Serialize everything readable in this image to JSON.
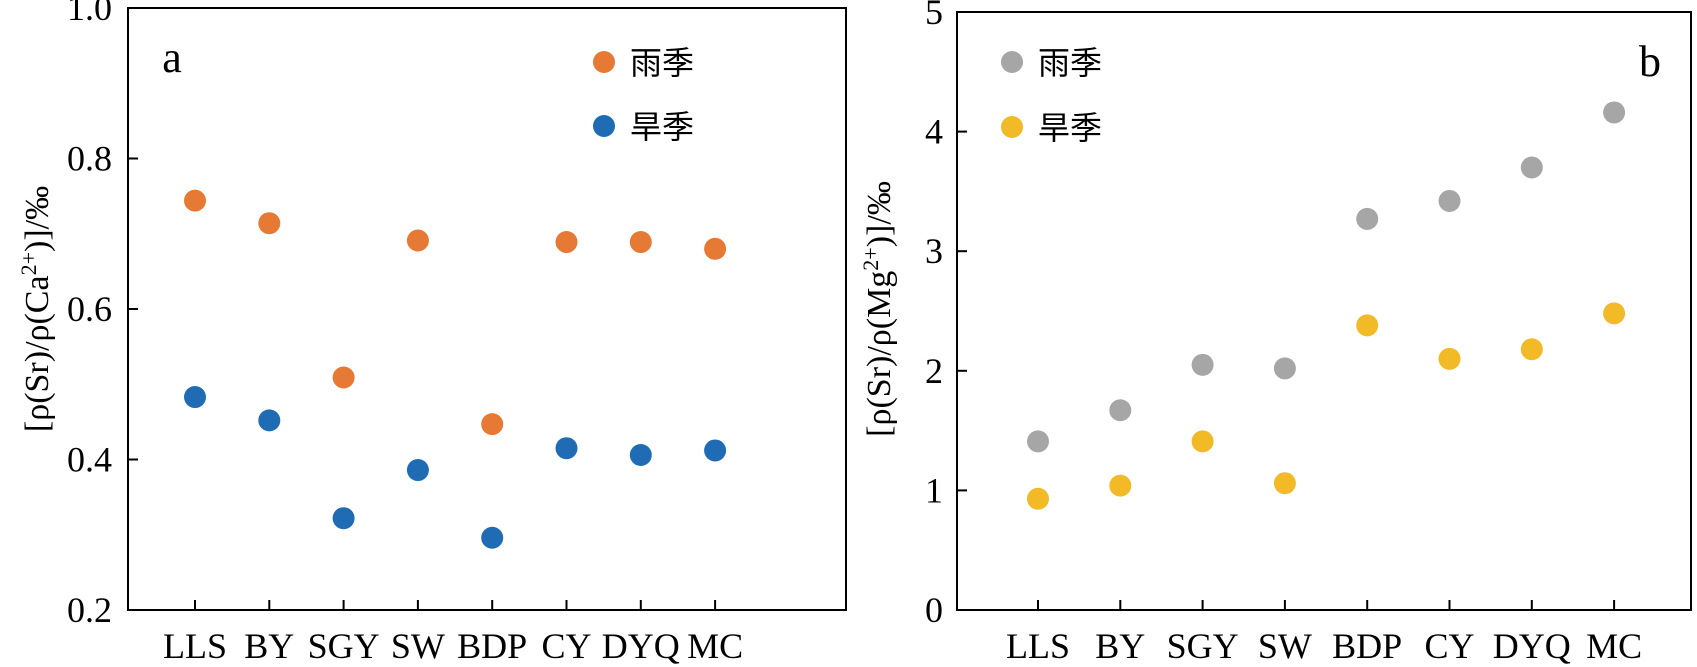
{
  "chart_data": [
    {
      "type": "scatter",
      "panel_label": "a",
      "categories": [
        "LLS",
        "BY",
        "SGY",
        "SW",
        "BDP",
        "CY",
        "DYQ",
        "MC"
      ],
      "ylabel_parts": [
        "[ρ(Sr)/ρ(Ca",
        "2+",
        ")]/‰"
      ],
      "ylim": [
        0.2,
        1.0
      ],
      "yticks": [
        "0.2",
        "0.4",
        "0.6",
        "0.8",
        "1.0"
      ],
      "legend_position": "top-right",
      "series": [
        {
          "name": "雨季",
          "color": "#E67A35",
          "values": [
            0.744,
            0.714,
            0.509,
            0.691,
            0.447,
            0.689,
            0.689,
            0.68
          ]
        },
        {
          "name": "旱季",
          "color": "#1F6CB5",
          "values": [
            0.483,
            0.452,
            0.322,
            0.386,
            0.296,
            0.415,
            0.406,
            0.412
          ]
        }
      ]
    },
    {
      "type": "scatter",
      "panel_label": "b",
      "categories": [
        "LLS",
        "BY",
        "SGY",
        "SW",
        "BDP",
        "CY",
        "DYQ",
        "MC"
      ],
      "ylabel_parts": [
        "[ρ(Sr)/ρ(Mg",
        "2+",
        ")]/‰"
      ],
      "ylim": [
        0,
        5
      ],
      "yticks": [
        "0",
        "1",
        "2",
        "3",
        "4",
        "5"
      ],
      "legend_position": "top-left",
      "series": [
        {
          "name": "雨季",
          "color": "#A6A6A6",
          "values": [
            1.41,
            1.67,
            2.05,
            2.02,
            3.27,
            3.42,
            3.7,
            4.16
          ]
        },
        {
          "name": "旱季",
          "color": "#F2BA26",
          "values": [
            0.93,
            1.04,
            1.41,
            1.06,
            2.38,
            2.1,
            2.18,
            2.48
          ]
        }
      ]
    }
  ]
}
